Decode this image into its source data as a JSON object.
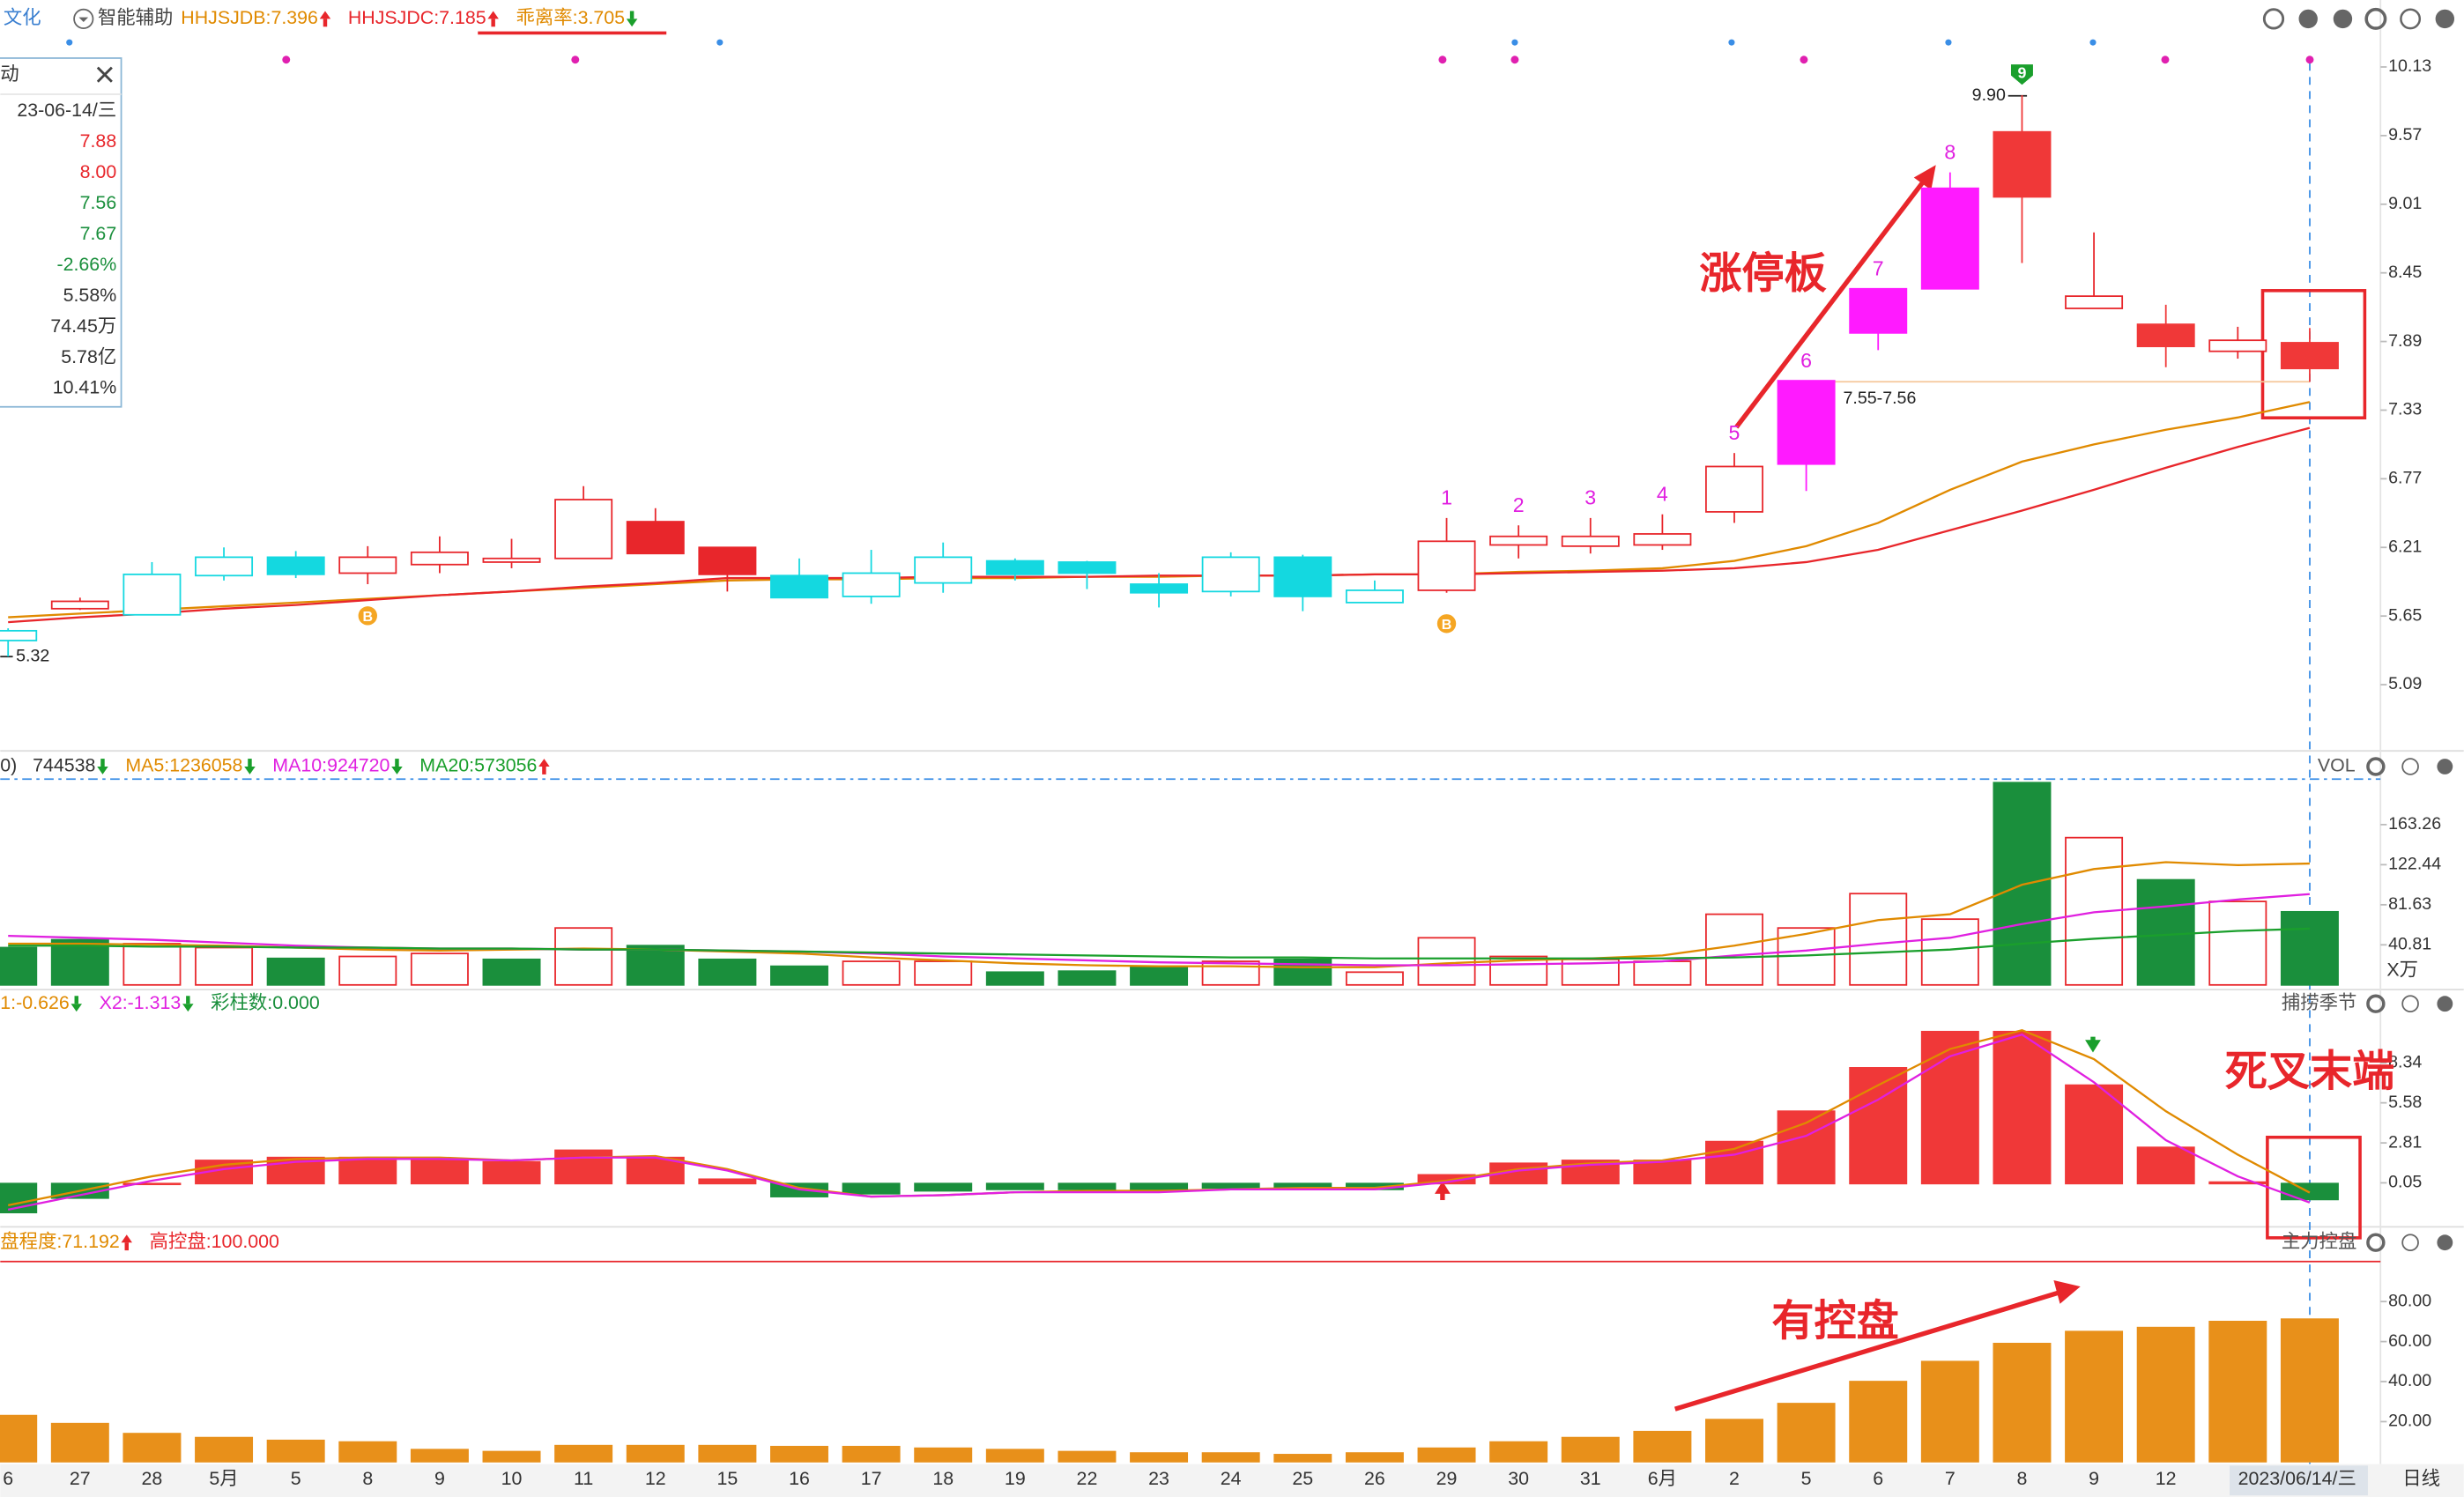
{
  "header": {
    "stock": "文化",
    "assist": "智能辅助",
    "legend": [
      {
        "text": "HHJSJDB:7.396",
        "color": "#e08a00",
        "arrow": "up"
      },
      {
        "text": "HHJSJDC:7.185",
        "color": "#e8262b",
        "arrow": "up"
      },
      {
        "text": "乖离率:3.705",
        "color": "#e08a00",
        "arrow": "down"
      }
    ]
  },
  "info_box": {
    "title": "动",
    "rows": [
      {
        "text": "23-06-14/三",
        "color": "#333"
      },
      {
        "text": "7.88",
        "color": "#e8262b"
      },
      {
        "text": "8.00",
        "color": "#e8262b"
      },
      {
        "text": "7.56",
        "color": "#1a8f3c"
      },
      {
        "text": "7.67",
        "color": "#1a8f3c"
      },
      {
        "text": "-2.66%",
        "color": "#1a8f3c"
      },
      {
        "text": "5.58%",
        "color": "#333"
      },
      {
        "text": "74.45万",
        "color": "#333"
      },
      {
        "text": "5.78亿",
        "color": "#333"
      },
      {
        "text": "10.41%",
        "color": "#333"
      }
    ]
  },
  "x_axis": {
    "categories": [
      "6",
      "27",
      "28",
      "5月",
      "5",
      "8",
      "9",
      "10",
      "11",
      "12",
      "15",
      "16",
      "17",
      "18",
      "19",
      "22",
      "23",
      "24",
      "25",
      "26",
      "29",
      "30",
      "31",
      "6月",
      "2",
      "5",
      "6",
      "7",
      "8",
      "9",
      "12",
      null,
      "2023/06/14/三"
    ],
    "period": "日线"
  },
  "chart_data": [
    {
      "type": "candlestick",
      "open": [
        5.53,
        5.71,
        5.66,
        5.98,
        6.13,
        6.0,
        6.07,
        6.09,
        6.12,
        6.42,
        6.21,
        5.98,
        5.81,
        5.92,
        6.1,
        6.09,
        5.91,
        5.85,
        6.13,
        5.76,
        5.86,
        6.23,
        6.22,
        6.23,
        6.5,
        6.89,
        7.96,
        8.32,
        9.6,
        8.16,
        8.03,
        7.81,
        7.88
      ],
      "high": [
        5.55,
        5.8,
        6.09,
        6.21,
        6.18,
        6.22,
        6.3,
        6.28,
        6.71,
        6.53,
        6.21,
        6.12,
        6.19,
        6.25,
        6.12,
        6.1,
        6.0,
        6.17,
        6.15,
        5.94,
        6.45,
        6.39,
        6.45,
        6.48,
        6.98,
        7.57,
        8.32,
        9.27,
        9.9,
        8.78,
        8.19,
        8.01,
        8.0
      ],
      "low": [
        5.32,
        5.7,
        5.66,
        5.94,
        5.96,
        5.91,
        6.0,
        6.04,
        6.12,
        6.16,
        5.85,
        5.8,
        5.75,
        5.84,
        5.94,
        5.87,
        5.72,
        5.81,
        5.69,
        5.76,
        5.84,
        6.12,
        6.16,
        6.19,
        6.41,
        6.67,
        7.82,
        8.32,
        8.53,
        8.16,
        7.68,
        7.75,
        7.56
      ],
      "close": [
        5.45,
        5.77,
        5.99,
        6.13,
        5.99,
        6.13,
        6.17,
        6.12,
        6.6,
        6.16,
        5.99,
        5.8,
        6.0,
        6.13,
        5.99,
        6.0,
        5.84,
        6.13,
        5.81,
        5.86,
        6.26,
        6.3,
        6.3,
        6.32,
        6.87,
        7.57,
        8.32,
        9.14,
        9.07,
        8.26,
        7.85,
        7.9,
        7.67
      ],
      "colors": [
        "#14d8e0",
        "#e8262b",
        "#14d8e0",
        "#14d8e0",
        "#14d8e0",
        "#e8262b",
        "#e8262b",
        "#e8262b",
        "#e8262b",
        "#e8262b",
        "#e8262b",
        "#14d8e0",
        "#14d8e0",
        "#14d8e0",
        "#14d8e0",
        "#14d8e0",
        "#14d8e0",
        "#14d8e0",
        "#14d8e0",
        "#14d8e0",
        "#e8262b",
        "#e8262b",
        "#e8262b",
        "#e8262b",
        "#e8262b",
        "#ff1aff",
        "#ff1aff",
        "#ff1aff",
        "#f03838",
        "#e8262b",
        "#f03838",
        "#e8262b",
        "#f03838"
      ],
      "hollow": [
        true,
        true,
        true,
        true,
        false,
        true,
        true,
        true,
        true,
        false,
        false,
        false,
        true,
        true,
        false,
        false,
        false,
        true,
        false,
        true,
        true,
        true,
        true,
        true,
        true,
        false,
        false,
        false,
        false,
        true,
        false,
        true,
        false
      ],
      "series": [
        {
          "color": "#e08a00",
          "values": [
            5.64,
            5.67,
            5.7,
            5.73,
            5.76,
            5.79,
            5.82,
            5.85,
            5.88,
            5.91,
            5.94,
            5.95,
            5.95,
            5.96,
            5.96,
            5.97,
            5.97,
            5.98,
            5.98,
            5.99,
            5.99,
            6.01,
            6.02,
            6.04,
            6.1,
            6.22,
            6.41,
            6.68,
            6.91,
            7.05,
            7.17,
            7.27,
            7.396
          ]
        },
        {
          "color": "#e8262b",
          "values": [
            5.6,
            5.64,
            5.67,
            5.71,
            5.74,
            5.78,
            5.82,
            5.85,
            5.89,
            5.92,
            5.96,
            5.96,
            5.96,
            5.97,
            5.97,
            5.97,
            5.98,
            5.98,
            5.98,
            5.99,
            5.99,
            6.0,
            6.01,
            6.02,
            6.04,
            6.09,
            6.19,
            6.35,
            6.51,
            6.68,
            6.86,
            7.03,
            7.185
          ]
        }
      ],
      "ylim": [
        4.55,
        10.42
      ],
      "yticks": [
        10.13,
        9.57,
        9.01,
        8.45,
        7.89,
        7.33,
        6.77,
        6.21,
        5.65,
        5.09
      ],
      "limit_up_counts": [
        1,
        2,
        3,
        4,
        5,
        6,
        7,
        8,
        9
      ],
      "signal_label": "B",
      "annotations": {
        "title": "涨停板",
        "range": "7.55-7.56",
        "high": "9.90",
        "low": "5.32"
      }
    },
    {
      "type": "bar",
      "legend": [
        {
          "text": "0)",
          "color": "#333"
        },
        {
          "text": "744538",
          "color": "#333",
          "arrow": "down"
        },
        {
          "text": "MA5:1236058",
          "color": "#e08a00",
          "arrow": "down"
        },
        {
          "text": "MA10:924720",
          "color": "#e020e0",
          "arrow": "down"
        },
        {
          "text": "MA20:573056",
          "color": "#1a9f2c",
          "arrow": "up"
        }
      ],
      "name": "VOL",
      "unit": "X万",
      "values": [
        38,
        46,
        42,
        38,
        27,
        29,
        32,
        26,
        58,
        40,
        26,
        19,
        24,
        24,
        13,
        14,
        19,
        24,
        26,
        13,
        48,
        29,
        26,
        24,
        72,
        58,
        93,
        67,
        206,
        150,
        107,
        85,
        74.45
      ],
      "colors": [
        "#1a8f3c",
        "#1a8f3c",
        "#e8262b",
        "#e8262b",
        "#1a8f3c",
        "#e8262b",
        "#e8262b",
        "#1a8f3c",
        "#e8262b",
        "#1a8f3c",
        "#1a8f3c",
        "#1a8f3c",
        "#e8262b",
        "#e8262b",
        "#1a8f3c",
        "#1a8f3c",
        "#1a8f3c",
        "#e8262b",
        "#1a8f3c",
        "#e8262b",
        "#e8262b",
        "#e8262b",
        "#e8262b",
        "#e8262b",
        "#e8262b",
        "#e8262b",
        "#e8262b",
        "#e8262b",
        "#1a8f3c",
        "#e8262b",
        "#1a8f3c",
        "#e8262b",
        "#1a8f3c"
      ],
      "series": [
        {
          "color": "#e08a00",
          "values": [
            42,
            42,
            41,
            40,
            38,
            36,
            35,
            36,
            37,
            36,
            34,
            32,
            28,
            25,
            22,
            20,
            19,
            19,
            18,
            18,
            22,
            25,
            27,
            30,
            40,
            52,
            66,
            72,
            102,
            118,
            125,
            122,
            123.6
          ]
        },
        {
          "color": "#e020e0",
          "values": [
            50,
            48,
            46,
            43,
            40,
            38,
            37,
            37,
            36,
            36,
            35,
            34,
            32,
            29,
            27,
            25,
            23,
            22,
            21,
            20,
            20,
            21,
            22,
            24,
            30,
            35,
            42,
            48,
            62,
            74,
            80,
            87,
            92.5
          ]
        },
        {
          "color": "#1a9f2c",
          "values": [
            40,
            40,
            39,
            39,
            38,
            38,
            37,
            37,
            36,
            36,
            35,
            34,
            33,
            32,
            31,
            30,
            29,
            28,
            28,
            27,
            27,
            27,
            27,
            27,
            28,
            30,
            33,
            36,
            42,
            47,
            51,
            55,
            57.3
          ]
        }
      ],
      "ylim": [
        0,
        209.6
      ],
      "yticks": [
        163.26,
        122.44,
        81.63,
        40.81
      ]
    },
    {
      "type": "bar",
      "legend": [
        {
          "text": "1:-0.626",
          "color": "#e08a00",
          "arrow": "down"
        },
        {
          "text": "X2:-1.313",
          "color": "#e020e0",
          "arrow": "down"
        },
        {
          "text": "彩柱数:0.000",
          "color": "#1a8f3c"
        }
      ],
      "name": "捕捞季节",
      "annotation": "死叉末端",
      "values": [
        -2.0,
        -1.0,
        0,
        1.6,
        1.8,
        1.8,
        1.7,
        1.5,
        2.3,
        1.8,
        0.3,
        -0.9,
        -0.7,
        -0.5,
        -0.4,
        -0.4,
        -0.5,
        -0.3,
        -0.3,
        -0.4,
        0.6,
        1.4,
        1.6,
        1.6,
        2.9,
        5.0,
        8.0,
        10.5,
        10.5,
        6.8,
        2.5,
        0.1,
        -1.1
      ],
      "up_color": "#f03838",
      "down_color": "#1a8f3c",
      "series": [
        {
          "color": "#e08a00",
          "values": [
            -1.5,
            -0.5,
            0.5,
            1.3,
            1.7,
            1.8,
            1.8,
            1.6,
            1.8,
            1.9,
            1.0,
            -0.3,
            -0.9,
            -0.8,
            -0.6,
            -0.5,
            -0.5,
            -0.4,
            -0.3,
            -0.3,
            0.2,
            1.0,
            1.4,
            1.6,
            2.4,
            4.2,
            6.8,
            9.3,
            10.6,
            8.6,
            5.0,
            2.0,
            -0.626
          ]
        },
        {
          "color": "#e020e0",
          "values": [
            -1.8,
            -0.8,
            0.2,
            1.0,
            1.5,
            1.7,
            1.7,
            1.6,
            1.8,
            1.8,
            0.9,
            -0.4,
            -0.9,
            -0.8,
            -0.6,
            -0.6,
            -0.6,
            -0.4,
            -0.4,
            -0.4,
            0.1,
            0.9,
            1.3,
            1.5,
            2.0,
            3.3,
            5.8,
            8.8,
            10.3,
            7.0,
            3.0,
            0.5,
            -1.313
          ]
        }
      ],
      "ylim": [
        -2.88,
        11.45
      ],
      "yticks": [
        8.34,
        5.58,
        2.81,
        0.05
      ]
    },
    {
      "type": "bar",
      "legend": [
        {
          "text": "盘程度:71.192",
          "color": "#e08a00",
          "arrow": "up"
        },
        {
          "text": "高控盘:100.000",
          "color": "#e8262b"
        }
      ],
      "name": "主力控盘",
      "annotation": "有控盘",
      "values": [
        23,
        19,
        14,
        12,
        10.6,
        9.8,
        6,
        5,
        8,
        8,
        8,
        7.5,
        7.5,
        6.7,
        6,
        5,
        4.3,
        4.3,
        3.5,
        4.3,
        6.7,
        9.8,
        12,
        15,
        21,
        29,
        40,
        50,
        59,
        65,
        67,
        70,
        71.192
      ],
      "color": "#e8901a",
      "level": 100,
      "level_color": "#e8262b",
      "ylim": [
        0,
        104
      ],
      "yticks": [
        {
          "value": 80,
          "label": "80.00"
        },
        {
          "value": 60,
          "label": "60.00"
        },
        {
          "value": 40,
          "label": "40.00"
        },
        {
          "value": 20,
          "label": "20.00"
        }
      ]
    }
  ]
}
